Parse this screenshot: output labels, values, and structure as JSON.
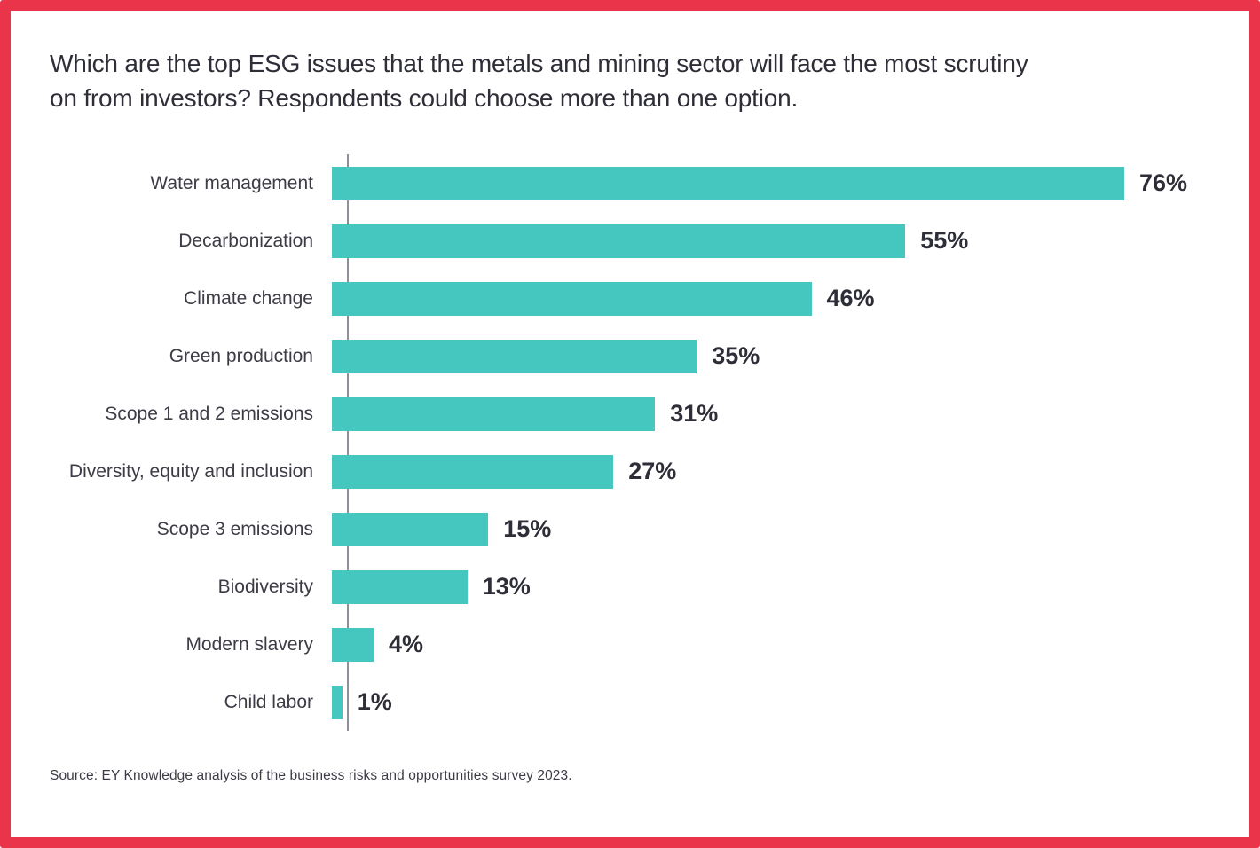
{
  "header": {
    "title_lines": [
      "Which are the top ESG issues that the metals and mining sector will face the most scrutiny",
      "on from investors? Respondents could choose more than one option."
    ]
  },
  "footer": {
    "source": "Source: EY Knowledge analysis of the business risks and opportunities survey 2023."
  },
  "colors": {
    "frame_red": "#e9344a",
    "bar_teal": "#45c6be",
    "axis_gray": "#8f8f97",
    "text_dark": "#2e2e38",
    "label_gray": "#3c3c46"
  },
  "chart_data": {
    "type": "bar",
    "orientation": "horizontal",
    "title": "Which are the top ESG issues that the metals and mining sector will face the most scrutiny on from investors? Respondents could choose more than one option.",
    "categories": [
      "Water management",
      "Decarbonization",
      "Climate change",
      "Green production",
      "Scope 1 and 2 emissions",
      "Diversity, equity and inclusion",
      "Scope 3 emissions",
      "Biodiversity",
      "Modern slavery",
      "Child labor"
    ],
    "values": [
      76,
      55,
      46,
      35,
      31,
      27,
      15,
      13,
      4,
      1
    ],
    "unit": "%",
    "value_labels": [
      "76%",
      "55%",
      "46%",
      "35%",
      "31%",
      "27%",
      "15%",
      "13%",
      "4%",
      "1%"
    ],
    "xlim": [
      0,
      86
    ],
    "grid": false,
    "legend": null,
    "bar_color": "#45c6be",
    "source": "Source: EY Knowledge analysis of the business risks and opportunities survey 2023."
  }
}
